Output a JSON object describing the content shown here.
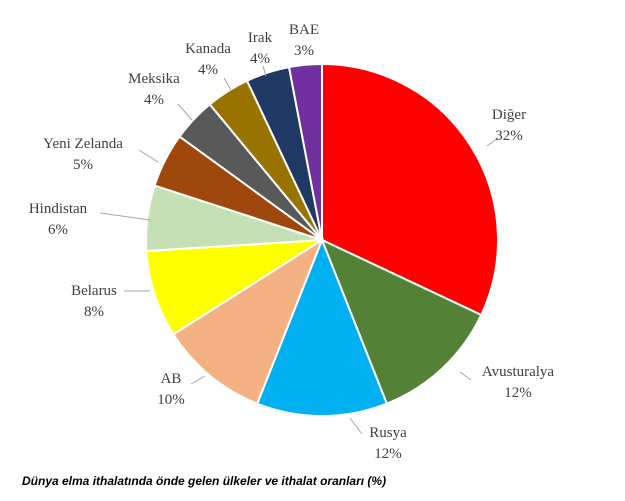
{
  "chart_data": {
    "type": "pie",
    "title": "",
    "caption": "Dünya elma ithalatında önde gelen ülkeler ve ithalat oranları (%)",
    "start": "12 o'clock, clockwise",
    "slices": [
      {
        "name": "Diğer",
        "value": 32,
        "label": "32%",
        "color": "#ff0000"
      },
      {
        "name": "Avusturalya",
        "value": 12,
        "label": "12%",
        "color": "#538135"
      },
      {
        "name": "Rusya",
        "value": 12,
        "label": "12%",
        "color": "#00b0f0"
      },
      {
        "name": "AB",
        "value": 10,
        "label": "10%",
        "color": "#f4b183"
      },
      {
        "name": "Belarus",
        "value": 8,
        "label": "8%",
        "color": "#ffff00"
      },
      {
        "name": "Hindistan",
        "value": 6,
        "label": "6%",
        "color": "#c5e0b4"
      },
      {
        "name": "Yeni Zelanda",
        "value": 5,
        "label": "5%",
        "color": "#9e480e"
      },
      {
        "name": "Meksika",
        "value": 4,
        "label": "4%",
        "color": "#595959"
      },
      {
        "name": "Kanada",
        "value": 4,
        "label": "4%",
        "color": "#997300"
      },
      {
        "name": "Irak",
        "value": 4,
        "label": "4%",
        "color": "#1f3864"
      },
      {
        "name": "BAE",
        "value": 3,
        "label": "3%",
        "color": "#7030a0"
      }
    ]
  }
}
